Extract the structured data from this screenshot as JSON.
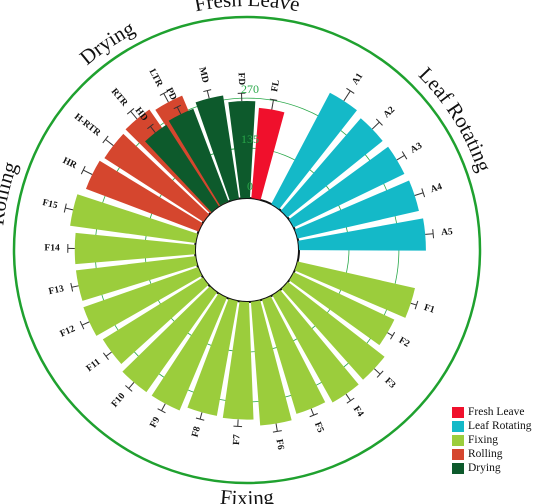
{
  "chart_data": {
    "type": "circular-bar",
    "radial_ticks": [
      "0",
      "135",
      "270"
    ],
    "radial_range": [
      0,
      400
    ],
    "groups": [
      {
        "name": "Fresh Leave",
        "color": "#f0102c"
      },
      {
        "name": "Leaf Rotating",
        "color": "#14b9c8"
      },
      {
        "name": "Fixing",
        "color": "#9bcd3c"
      },
      {
        "name": "Rolling",
        "color": "#d5462e"
      },
      {
        "name": "Drying",
        "color": "#0d5a2c"
      }
    ],
    "outer_labels": [
      "Fresh Leave",
      "Leaf Rotating",
      "Fixing",
      "Rolling",
      "Drying"
    ],
    "categories": [
      {
        "label": "FL",
        "group": 0,
        "value": 245,
        "err": 10
      },
      {
        "label": "A1",
        "group": 1,
        "value": 340,
        "err": 12
      },
      {
        "label": "A2",
        "group": 1,
        "value": 330,
        "err": 10
      },
      {
        "label": "A3",
        "group": 1,
        "value": 332,
        "err": 9
      },
      {
        "label": "A4",
        "group": 1,
        "value": 336,
        "err": 9
      },
      {
        "label": "A5",
        "group": 1,
        "value": 343,
        "err": 8
      },
      {
        "label": "F1",
        "group": 2,
        "value": 325,
        "err": 6
      },
      {
        "label": "F2",
        "group": 2,
        "value": 300,
        "err": 6
      },
      {
        "label": "F3",
        "group": 2,
        "value": 330,
        "err": 8
      },
      {
        "label": "F4",
        "group": 2,
        "value": 332,
        "err": 8
      },
      {
        "label": "F5",
        "group": 2,
        "value": 322,
        "err": 7
      },
      {
        "label": "F6",
        "group": 2,
        "value": 335,
        "err": 8
      },
      {
        "label": "F7",
        "group": 2,
        "value": 318,
        "err": 7
      },
      {
        "label": "F8",
        "group": 2,
        "value": 315,
        "err": 7
      },
      {
        "label": "F9",
        "group": 2,
        "value": 330,
        "err": 8
      },
      {
        "label": "F10",
        "group": 2,
        "value": 330,
        "err": 8
      },
      {
        "label": "F11",
        "group": 2,
        "value": 318,
        "err": 7
      },
      {
        "label": "F12",
        "group": 2,
        "value": 328,
        "err": 8
      },
      {
        "label": "F13",
        "group": 2,
        "value": 325,
        "err": 7
      },
      {
        "label": "F14",
        "group": 2,
        "value": 325,
        "err": 7
      },
      {
        "label": "F15",
        "group": 2,
        "value": 342,
        "err": 8
      },
      {
        "label": "HR",
        "group": 3,
        "value": 325,
        "err": 10
      },
      {
        "label": "H-RTR",
        "group": 3,
        "value": 318,
        "err": 10
      },
      {
        "label": "RTR",
        "group": 3,
        "value": 322,
        "err": 10
      },
      {
        "label": "LTR",
        "group": 3,
        "value": 312,
        "err": 10
      },
      {
        "label": "HD",
        "group": 4,
        "value": 262,
        "err": 8
      },
      {
        "label": "PD",
        "group": 4,
        "value": 268,
        "err": 8
      },
      {
        "label": "MD",
        "group": 4,
        "value": 282,
        "err": 8
      },
      {
        "label": "FD",
        "group": 4,
        "value": 262,
        "err": 8
      }
    ],
    "legend_position": "bottom-right"
  }
}
